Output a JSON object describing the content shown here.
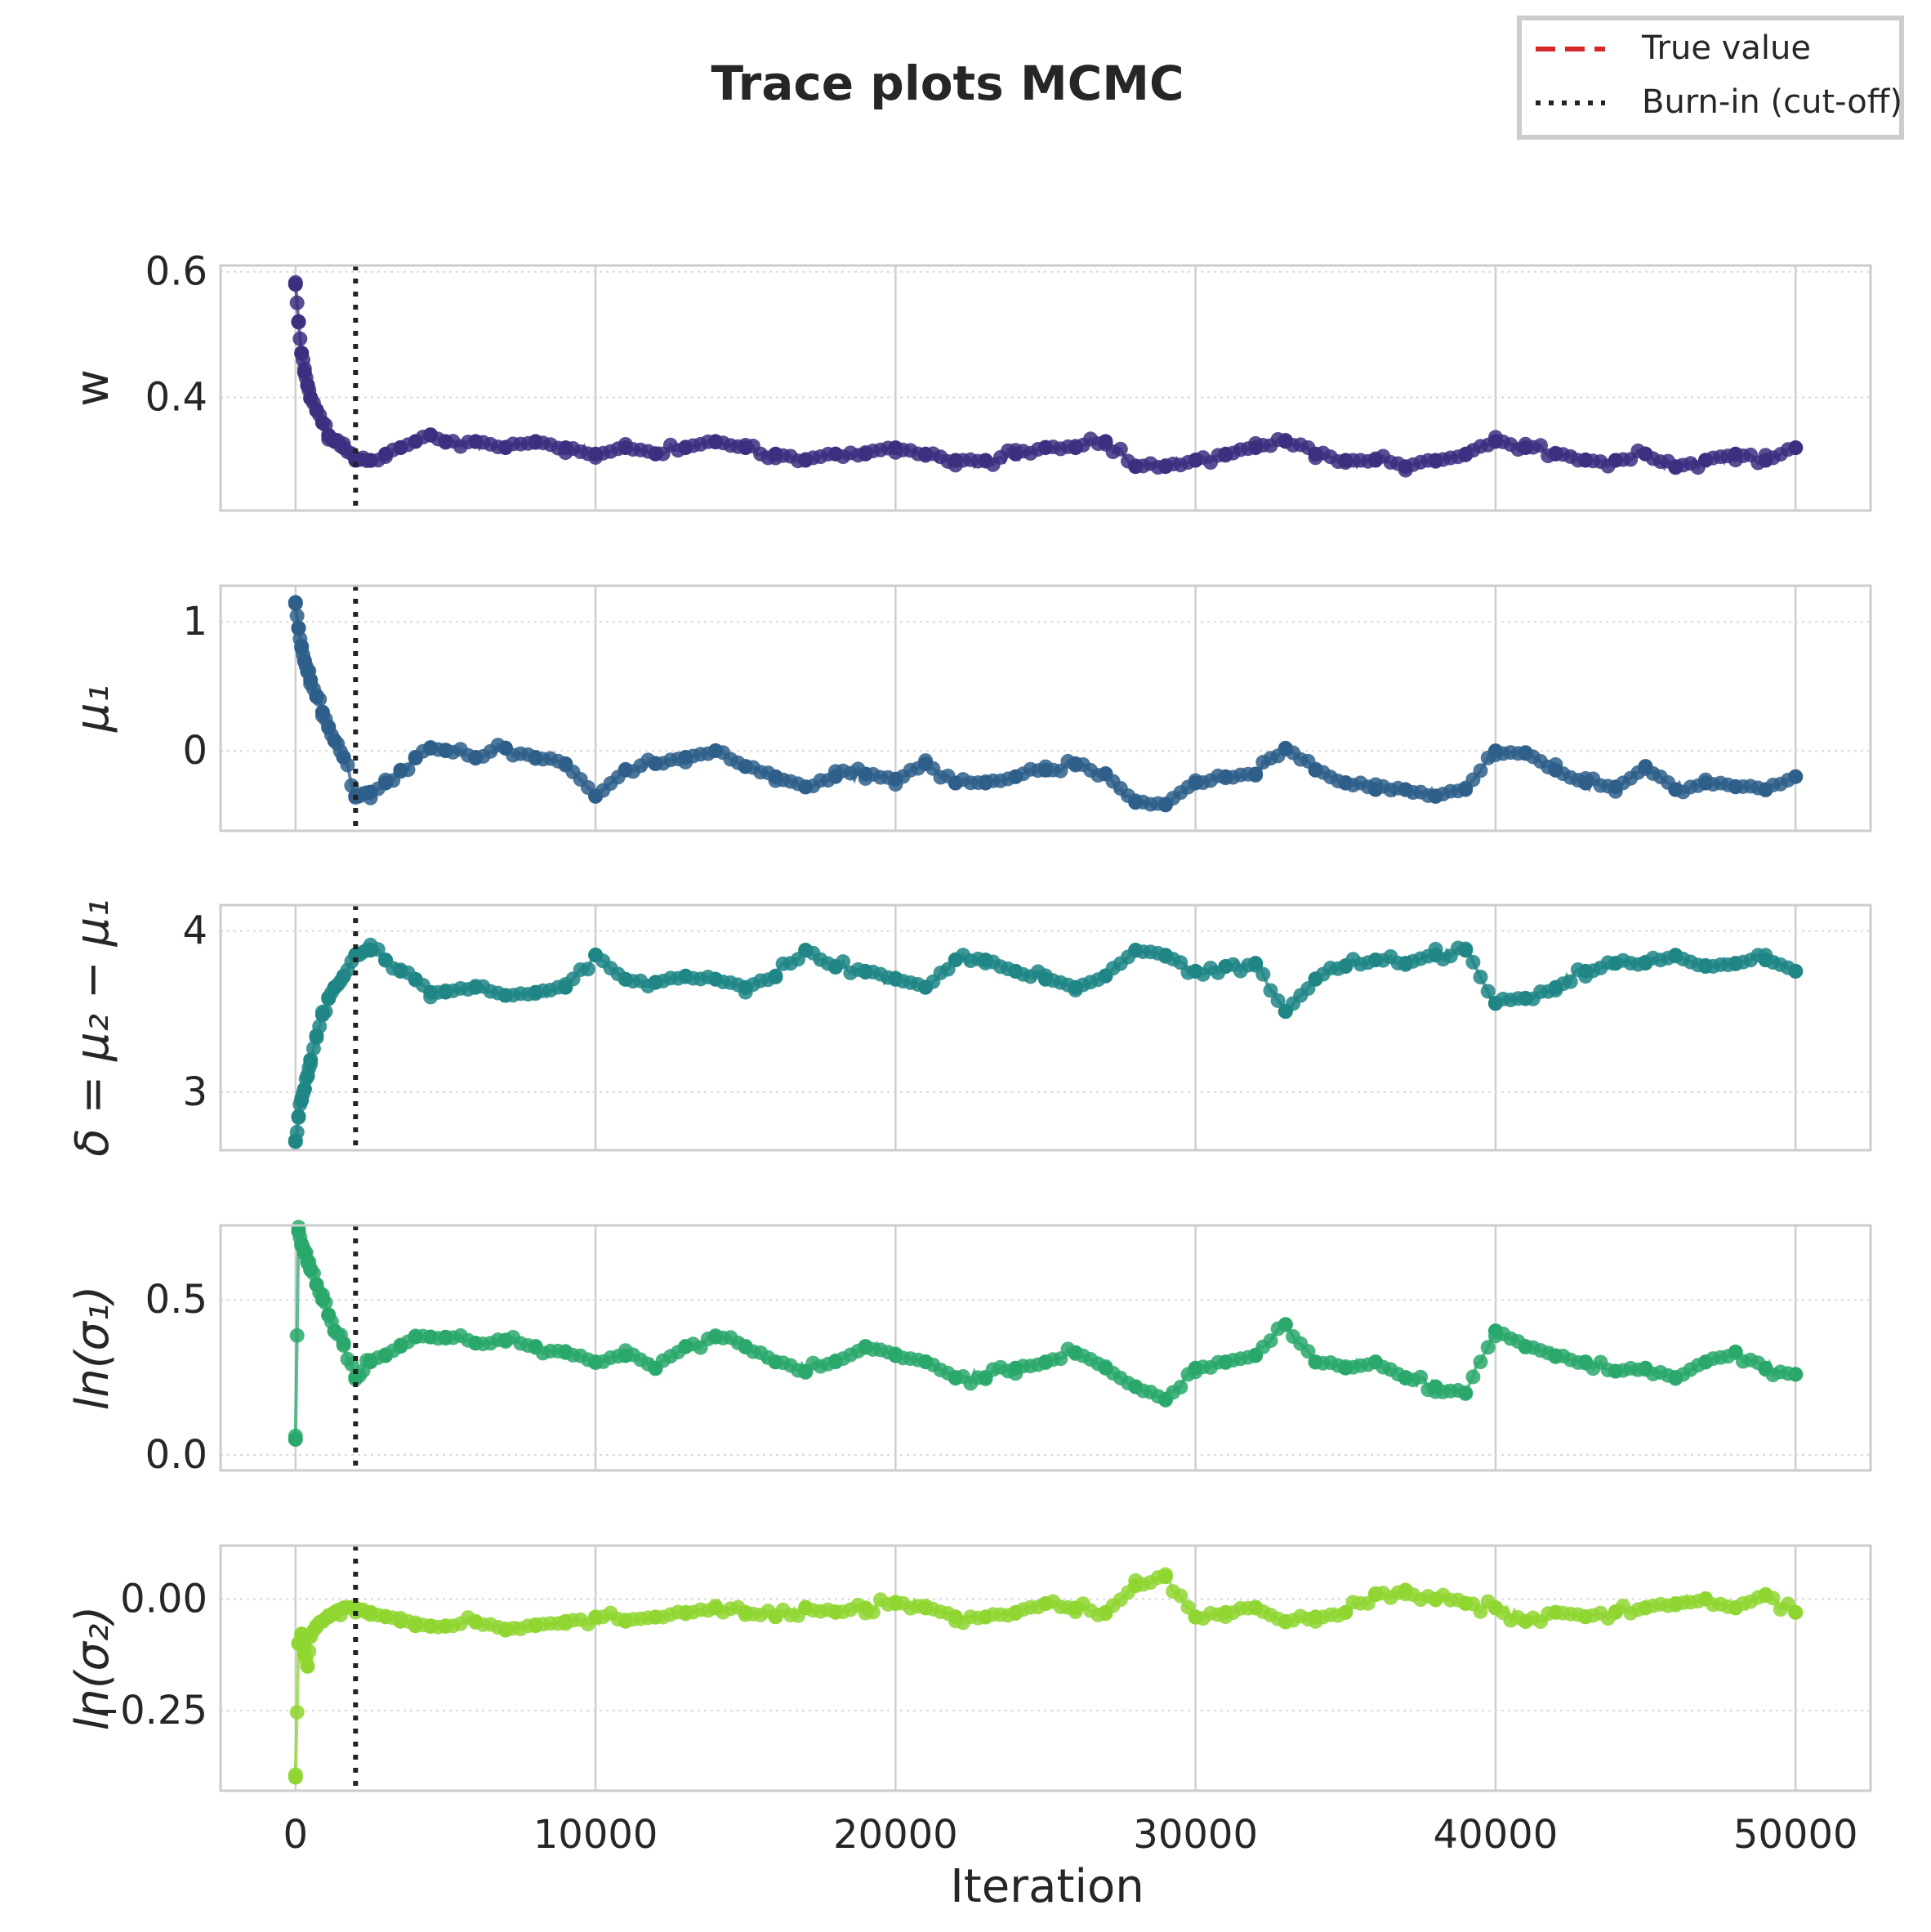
{
  "chart_data": {
    "type": "line",
    "title": "Trace plots MCMC",
    "xlabel": "Iteration",
    "xlim": [
      -2500,
      52500
    ],
    "xticks": [
      0,
      10000,
      20000,
      30000,
      40000,
      50000
    ],
    "xtick_labels": [
      "0",
      "10000",
      "20000",
      "30000",
      "40000",
      "50000"
    ],
    "grid": true,
    "legend_position": "top-right",
    "legend": [
      {
        "label": "True value",
        "style": "dashed",
        "color": "#d62728"
      },
      {
        "label": "Burn-in (cut-off)",
        "style": "dotted",
        "color": "#222222"
      }
    ],
    "burn_in": 2000,
    "panels": [
      {
        "ylabel": "w",
        "color": "#3b2f80",
        "ylim": [
          0.22,
          0.61
        ],
        "yticks": [
          0.4,
          0.6
        ],
        "ytick_labels": [
          "0.4",
          "0.6"
        ],
        "x": [
          0,
          100,
          200,
          300,
          400,
          500,
          700,
          900,
          1100,
          1300,
          1600,
          2000,
          2500,
          3000,
          3500,
          4000,
          4500,
          5000,
          6000,
          7000,
          8000,
          9000,
          10000,
          11000,
          12000,
          13000,
          14000,
          15000,
          16000,
          17000,
          18000,
          19000,
          20000,
          21000,
          22000,
          23000,
          24000,
          25000,
          26000,
          27000,
          28000,
          29000,
          30000,
          31000,
          32000,
          33000,
          34000,
          35000,
          36000,
          37000,
          38000,
          39000,
          40000,
          41000,
          42000,
          43000,
          44000,
          45000,
          46000,
          47000,
          48000,
          49000,
          50000
        ],
        "values": [
          0.58,
          0.52,
          0.47,
          0.44,
          0.42,
          0.4,
          0.38,
          0.36,
          0.34,
          0.33,
          0.32,
          0.3,
          0.3,
          0.31,
          0.32,
          0.33,
          0.34,
          0.33,
          0.33,
          0.32,
          0.33,
          0.32,
          0.31,
          0.32,
          0.31,
          0.32,
          0.33,
          0.32,
          0.31,
          0.3,
          0.31,
          0.31,
          0.32,
          0.31,
          0.3,
          0.3,
          0.31,
          0.32,
          0.32,
          0.33,
          0.29,
          0.29,
          0.3,
          0.31,
          0.32,
          0.33,
          0.31,
          0.3,
          0.3,
          0.29,
          0.3,
          0.31,
          0.33,
          0.32,
          0.31,
          0.3,
          0.3,
          0.31,
          0.29,
          0.3,
          0.31,
          0.3,
          0.32
        ]
      },
      {
        "ylabel": "μ₁",
        "color": "#2e5f8a",
        "ylim": [
          -0.62,
          1.28
        ],
        "yticks": [
          0,
          1
        ],
        "ytick_labels": [
          "0",
          "1"
        ],
        "x": [
          0,
          100,
          200,
          300,
          400,
          500,
          700,
          900,
          1100,
          1300,
          1600,
          2000,
          2500,
          3000,
          3500,
          4000,
          4500,
          5000,
          6000,
          7000,
          8000,
          9000,
          10000,
          11000,
          12000,
          13000,
          14000,
          15000,
          16000,
          17000,
          18000,
          19000,
          20000,
          21000,
          22000,
          23000,
          24000,
          25000,
          26000,
          27000,
          28000,
          29000,
          30000,
          31000,
          32000,
          33000,
          34000,
          35000,
          36000,
          37000,
          38000,
          39000,
          40000,
          41000,
          42000,
          43000,
          44000,
          45000,
          46000,
          47000,
          48000,
          49000,
          50000
        ],
        "values": [
          1.15,
          0.95,
          0.8,
          0.7,
          0.62,
          0.55,
          0.42,
          0.3,
          0.18,
          0.08,
          -0.05,
          -0.35,
          -0.32,
          -0.25,
          -0.15,
          -0.05,
          0.02,
          0.0,
          -0.05,
          0.02,
          -0.05,
          -0.1,
          -0.35,
          -0.15,
          -0.1,
          -0.05,
          0.0,
          -0.12,
          -0.2,
          -0.28,
          -0.2,
          -0.18,
          -0.22,
          -0.1,
          -0.25,
          -0.25,
          -0.2,
          -0.15,
          -0.1,
          -0.18,
          -0.4,
          -0.42,
          -0.25,
          -0.2,
          -0.18,
          0.02,
          -0.15,
          -0.25,
          -0.3,
          -0.3,
          -0.35,
          -0.3,
          0.0,
          -0.02,
          -0.15,
          -0.25,
          -0.28,
          -0.12,
          -0.3,
          -0.25,
          -0.28,
          -0.3,
          -0.2
        ]
      },
      {
        "ylabel": "δ = μ₂ − μ₁",
        "color": "#1f8585",
        "ylim": [
          2.64,
          4.16
        ],
        "yticks": [
          3,
          4
        ],
        "ytick_labels": [
          "3",
          "4"
        ],
        "x": [
          0,
          100,
          200,
          300,
          400,
          500,
          700,
          900,
          1100,
          1300,
          1600,
          2000,
          2500,
          3000,
          3500,
          4000,
          4500,
          5000,
          6000,
          7000,
          8000,
          9000,
          10000,
          11000,
          12000,
          13000,
          14000,
          15000,
          16000,
          17000,
          18000,
          19000,
          20000,
          21000,
          22000,
          23000,
          24000,
          25000,
          26000,
          27000,
          28000,
          29000,
          30000,
          31000,
          32000,
          33000,
          34000,
          35000,
          36000,
          37000,
          38000,
          39000,
          40000,
          41000,
          42000,
          43000,
          44000,
          45000,
          46000,
          47000,
          48000,
          49000,
          50000
        ],
        "values": [
          2.7,
          2.85,
          2.95,
          3.02,
          3.1,
          3.2,
          3.35,
          3.48,
          3.58,
          3.65,
          3.72,
          3.85,
          3.88,
          3.82,
          3.75,
          3.7,
          3.62,
          3.62,
          3.65,
          3.6,
          3.62,
          3.65,
          3.85,
          3.7,
          3.68,
          3.72,
          3.7,
          3.65,
          3.72,
          3.88,
          3.78,
          3.75,
          3.7,
          3.65,
          3.82,
          3.82,
          3.75,
          3.7,
          3.65,
          3.72,
          3.88,
          3.85,
          3.75,
          3.78,
          3.8,
          3.5,
          3.7,
          3.78,
          3.82,
          3.8,
          3.85,
          3.88,
          3.55,
          3.58,
          3.65,
          3.75,
          3.8,
          3.8,
          3.85,
          3.78,
          3.8,
          3.82,
          3.75
        ]
      },
      {
        "ylabel": "ln(σ₁)",
        "color": "#2aa86b",
        "ylim": [
          -0.05,
          0.74
        ],
        "yticks": [
          0.0,
          0.5
        ],
        "ytick_labels": [
          "0.0",
          "0.5"
        ],
        "x": [
          0,
          100,
          200,
          300,
          400,
          500,
          700,
          900,
          1100,
          1300,
          1600,
          2000,
          2500,
          3000,
          3500,
          4000,
          4500,
          5000,
          6000,
          7000,
          8000,
          9000,
          10000,
          11000,
          12000,
          13000,
          14000,
          15000,
          16000,
          17000,
          18000,
          19000,
          20000,
          21000,
          22000,
          23000,
          24000,
          25000,
          26000,
          27000,
          28000,
          29000,
          30000,
          31000,
          32000,
          33000,
          34000,
          35000,
          36000,
          37000,
          38000,
          39000,
          40000,
          41000,
          42000,
          43000,
          44000,
          45000,
          46000,
          47000,
          48000,
          49000,
          50000
        ],
        "values": [
          0.05,
          0.72,
          0.68,
          0.65,
          0.62,
          0.6,
          0.55,
          0.5,
          0.45,
          0.4,
          0.36,
          0.25,
          0.3,
          0.32,
          0.35,
          0.38,
          0.38,
          0.38,
          0.36,
          0.37,
          0.35,
          0.33,
          0.3,
          0.32,
          0.28,
          0.35,
          0.38,
          0.35,
          0.3,
          0.27,
          0.3,
          0.35,
          0.32,
          0.3,
          0.25,
          0.25,
          0.28,
          0.3,
          0.33,
          0.28,
          0.22,
          0.18,
          0.28,
          0.3,
          0.32,
          0.42,
          0.3,
          0.28,
          0.3,
          0.25,
          0.22,
          0.2,
          0.4,
          0.35,
          0.32,
          0.3,
          0.27,
          0.28,
          0.25,
          0.3,
          0.33,
          0.28,
          0.26
        ]
      },
      {
        "ylabel": "ln(σ₂)",
        "color": "#8fd631",
        "ylim": [
          -0.43,
          0.12
        ],
        "yticks": [
          -0.25,
          0.0
        ],
        "ytick_labels": [
          "−0.25",
          "0.00"
        ],
        "x": [
          0,
          100,
          200,
          300,
          400,
          500,
          700,
          900,
          1100,
          1300,
          1600,
          2000,
          2500,
          3000,
          3500,
          4000,
          4500,
          5000,
          6000,
          7000,
          8000,
          9000,
          10000,
          11000,
          12000,
          13000,
          14000,
          15000,
          16000,
          17000,
          18000,
          19000,
          20000,
          21000,
          22000,
          23000,
          24000,
          25000,
          26000,
          27000,
          28000,
          29000,
          30000,
          31000,
          32000,
          33000,
          34000,
          35000,
          36000,
          37000,
          38000,
          39000,
          40000,
          41000,
          42000,
          43000,
          44000,
          45000,
          46000,
          47000,
          48000,
          49000,
          50000
        ],
        "values": [
          -0.4,
          -0.1,
          -0.08,
          -0.12,
          -0.15,
          -0.08,
          -0.06,
          -0.05,
          -0.04,
          -0.03,
          -0.02,
          -0.02,
          -0.03,
          -0.04,
          -0.05,
          -0.06,
          -0.06,
          -0.06,
          -0.05,
          -0.07,
          -0.06,
          -0.05,
          -0.04,
          -0.05,
          -0.04,
          -0.03,
          -0.02,
          -0.03,
          -0.04,
          -0.02,
          -0.03,
          -0.02,
          -0.01,
          -0.02,
          -0.04,
          -0.04,
          -0.03,
          -0.01,
          -0.02,
          -0.03,
          0.03,
          0.05,
          -0.04,
          -0.03,
          -0.02,
          -0.05,
          -0.04,
          -0.03,
          0.01,
          0.02,
          0.0,
          -0.01,
          -0.02,
          -0.05,
          -0.03,
          -0.04,
          -0.03,
          -0.02,
          -0.01,
          0.0,
          -0.02,
          0.01,
          -0.03
        ]
      }
    ]
  }
}
